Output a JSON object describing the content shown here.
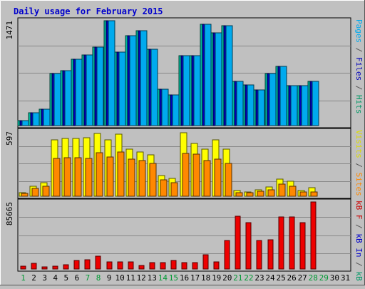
{
  "chart_data": {
    "type": "bar",
    "title": "Daily usage for February 2015",
    "x_labels": [
      "1",
      "2",
      "3",
      "4",
      "5",
      "6",
      "7",
      "8",
      "9",
      "10",
      "11",
      "12",
      "13",
      "14",
      "15",
      "16",
      "17",
      "18",
      "19",
      "20",
      "21",
      "22",
      "23",
      "24",
      "25",
      "26",
      "27",
      "28",
      "29",
      "30",
      "31"
    ],
    "weekend_days": [
      1,
      7,
      8,
      14,
      15,
      21,
      22,
      28,
      29
    ],
    "colors": {
      "background": "#c0c0c0",
      "plot_background": "#c0c0c0",
      "border": "#000000",
      "grid": "#888888",
      "title": "#0000cc",
      "axis_max": "#000000",
      "weekday_label": "#000000",
      "weekend_label": "#009933"
    },
    "panels": [
      {
        "id": "pages-files-hits",
        "axis_max_label": "1471",
        "y_max": 1471,
        "legend": [
          {
            "text": "Pages",
            "color": "#00aaee"
          },
          {
            "text": " / ",
            "color": "#555555"
          },
          {
            "text": "Files",
            "color": "#0000bb"
          },
          {
            "text": " / ",
            "color": "#555555"
          },
          {
            "text": "Hits",
            "color": "#009966"
          }
        ],
        "series": [
          {
            "name": "Hits",
            "color": "#00bb99",
            "values": [
              70,
              185,
              235,
              730,
              775,
              935,
              990,
              1100,
              1471,
              1030,
              1260,
              1335,
              1070,
              515,
              430,
              985,
              985,
              1420,
              1300,
              1400,
              625,
              570,
              505,
              730,
              830,
              565,
              565,
              620,
              0,
              0,
              0
            ]
          },
          {
            "name": "Files",
            "color": "#0000bb",
            "values": [
              70,
              185,
              235,
              730,
              775,
              935,
              990,
              1100,
              1471,
              1030,
              1260,
              1335,
              1070,
              515,
              430,
              985,
              985,
              1420,
              1300,
              1400,
              625,
              570,
              505,
              730,
              830,
              565,
              565,
              620,
              0,
              0,
              0
            ]
          },
          {
            "name": "Pages",
            "color": "#00aaee",
            "values": [
              70,
              185,
              235,
              730,
              775,
              935,
              990,
              1100,
              1471,
              1030,
              1260,
              1335,
              1070,
              515,
              430,
              985,
              985,
              1420,
              1300,
              1400,
              625,
              570,
              505,
              730,
              830,
              565,
              565,
              620,
              0,
              0,
              0
            ]
          }
        ]
      },
      {
        "id": "visits-sites",
        "axis_max_label": "597",
        "y_max": 597,
        "legend": [
          {
            "text": "Visits",
            "color": "#dddd00"
          },
          {
            "text": " / ",
            "color": "#555555"
          },
          {
            "text": "Sites",
            "color": "#ff8800"
          }
        ],
        "series": [
          {
            "name": "Visits",
            "color": "#ffff00",
            "values": [
              35,
              95,
              125,
              520,
              530,
              530,
              540,
              575,
              515,
              570,
              430,
              410,
              380,
              190,
              165,
              585,
              485,
              435,
              520,
              435,
              55,
              40,
              60,
              85,
              155,
              135,
              55,
              80,
              0,
              0,
              0
            ]
          },
          {
            "name": "Sites",
            "color": "#ff8800",
            "values": [
              25,
              70,
              90,
              345,
              355,
              355,
              345,
              400,
              360,
              405,
              340,
              325,
              300,
              150,
              125,
              395,
              390,
              330,
              340,
              300,
              35,
              30,
              45,
              60,
              110,
              95,
              40,
              40,
              0,
              0,
              0
            ]
          }
        ]
      },
      {
        "id": "kb",
        "axis_max_label": "85665",
        "y_max": 85665,
        "legend": [
          {
            "text": "kB F",
            "color": "#cc0000"
          },
          {
            "text": " / ",
            "color": "#555555"
          },
          {
            "text": "kB In",
            "color": "#0000cc"
          },
          {
            "text": " / ",
            "color": "#555555"
          },
          {
            "text": "kB Out",
            "color": "#009966"
          }
        ],
        "series": [
          {
            "name": "kB F",
            "color": "#ee0000",
            "values": [
              3500,
              7000,
              3000,
              4000,
              5500,
              10500,
              11500,
              16000,
              9000,
              9000,
              9000,
              4500,
              8000,
              8000,
              11000,
              8500,
              8000,
              18000,
              9000,
              36500,
              67000,
              59000,
              36500,
              37000,
              66500,
              66500,
              59000,
              85665,
              0,
              0,
              0
            ]
          }
        ]
      }
    ]
  }
}
